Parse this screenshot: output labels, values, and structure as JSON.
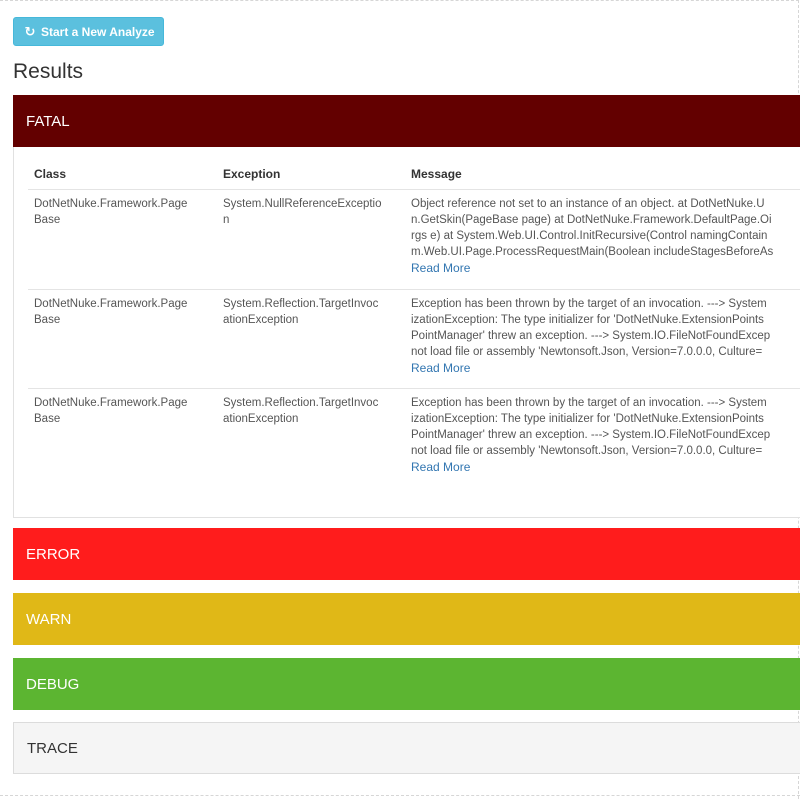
{
  "toolbar": {
    "start_label": "Start a New Analyze",
    "start_icon": "refresh-icon"
  },
  "page": {
    "title": "Results"
  },
  "colors": {
    "fatal": "#630000",
    "error": "#ff1c1c",
    "warn": "#e0b817",
    "debug": "#5cb531",
    "trace": "#f5f5f5",
    "button": "#5bc0de"
  },
  "levels": {
    "fatal": "FATAL",
    "error": "ERROR",
    "warn": "WARN",
    "debug": "DEBUG",
    "trace": "TRACE"
  },
  "table": {
    "headers": {
      "class": "Class",
      "exception": "Exception",
      "message": "Message"
    },
    "read_more": "Read More",
    "rows": [
      {
        "class_lines": [
          "DotNetNuke.Framework.Page",
          "Base"
        ],
        "exception_lines": [
          "System.NullReferenceExceptio",
          "n"
        ],
        "message_lines": [
          "Object reference not set to an instance of an object. at DotNetNuke.U",
          "n.GetSkin(PageBase page) at DotNetNuke.Framework.DefaultPage.Oi",
          "rgs e) at System.Web.UI.Control.InitRecursive(Control namingContain",
          "m.Web.UI.Page.ProcessRequestMain(Boolean includeStagesBeforeAs"
        ]
      },
      {
        "class_lines": [
          "DotNetNuke.Framework.Page",
          "Base"
        ],
        "exception_lines": [
          "System.Reflection.TargetInvoc",
          "ationException"
        ],
        "message_lines": [
          "Exception has been thrown by the target of an invocation. ---> System",
          "izationException: The type initializer for 'DotNetNuke.ExtensionPoints",
          "PointManager' threw an exception. ---> System.IO.FileNotFoundExcep",
          "not load file or assembly 'Newtonsoft.Json, Version=7.0.0.0, Culture="
        ]
      },
      {
        "class_lines": [
          "DotNetNuke.Framework.Page",
          "Base"
        ],
        "exception_lines": [
          "System.Reflection.TargetInvoc",
          "ationException"
        ],
        "message_lines": [
          "Exception has been thrown by the target of an invocation. ---> System",
          "izationException: The type initializer for 'DotNetNuke.ExtensionPoints",
          "PointManager' threw an exception. ---> System.IO.FileNotFoundExcep",
          "not load file or assembly 'Newtonsoft.Json, Version=7.0.0.0, Culture="
        ]
      }
    ]
  }
}
